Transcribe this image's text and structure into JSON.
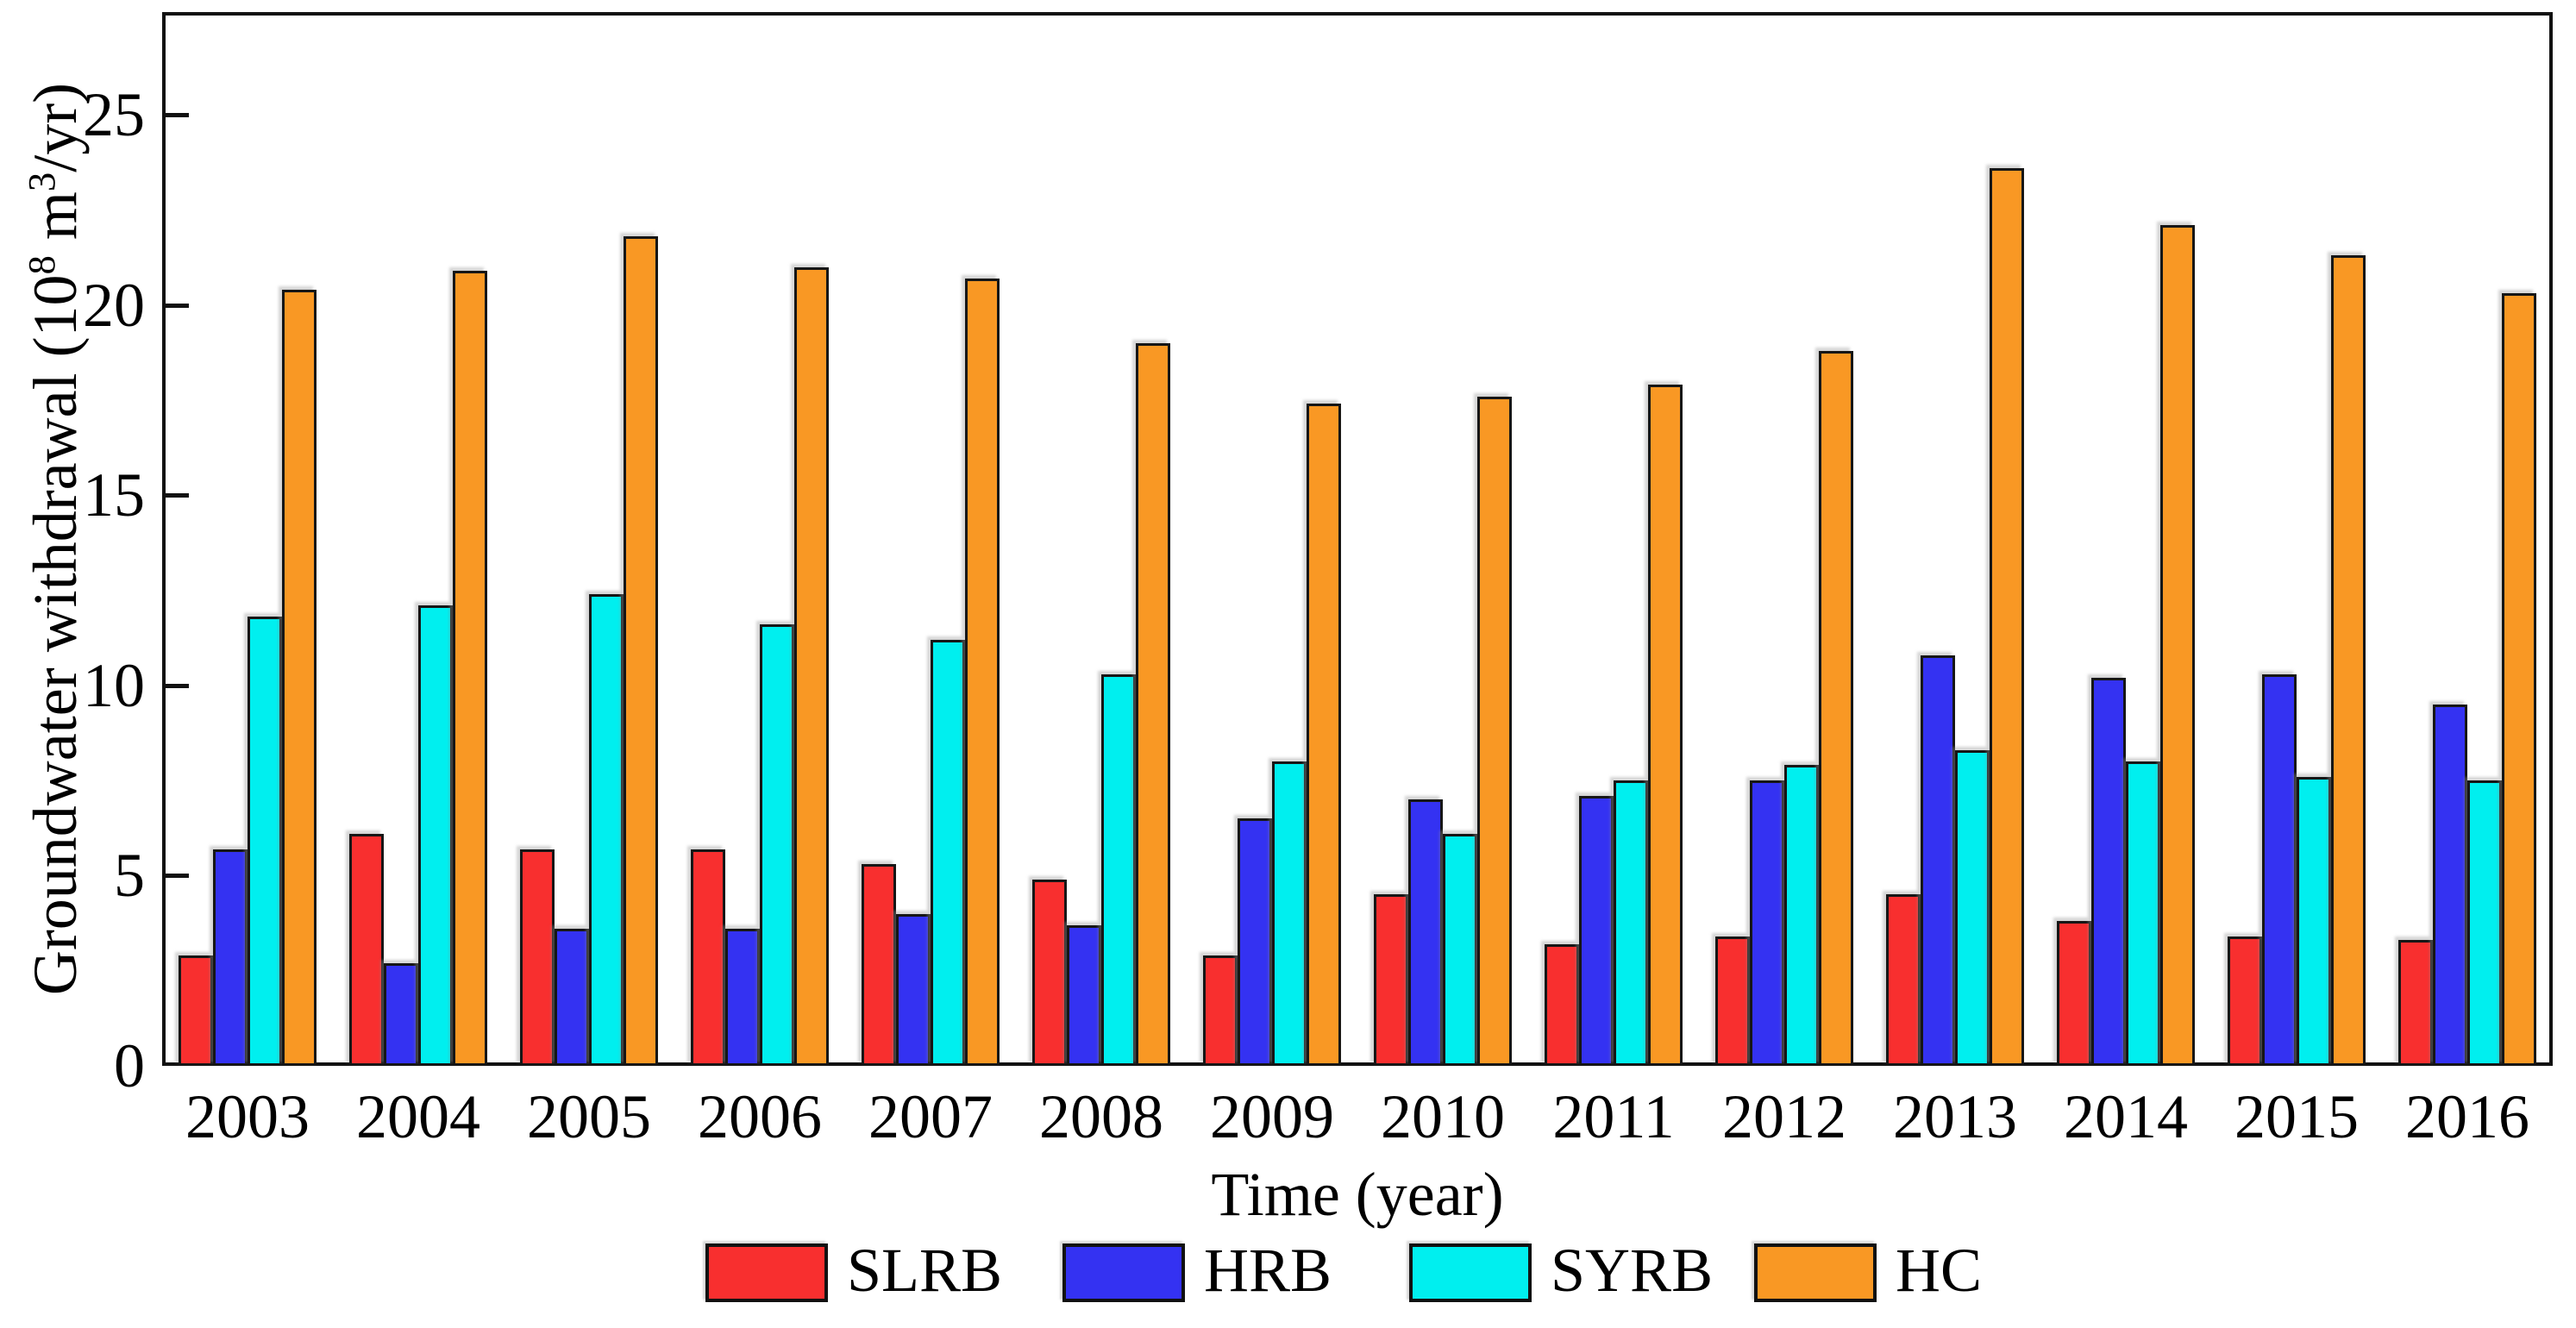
{
  "figure": {
    "background": "#ffffff",
    "frame_color": "#111111"
  },
  "y_axis": {
    "label_prefix": "Groundwater withdrawal (10",
    "label_sup1": "8",
    "label_mid": " m",
    "label_sup2": "3",
    "label_suffix": "/yr)",
    "tick_labels": [
      "0",
      "5",
      "10",
      "15",
      "20",
      "25"
    ]
  },
  "x_axis": {
    "label": "Time (year)"
  },
  "legend": {
    "items": [
      {
        "label": "SLRB",
        "color": "#f82f2f"
      },
      {
        "label": "HRB",
        "color": "#3432f2"
      },
      {
        "label": "SYRB",
        "color": "#00efef"
      },
      {
        "label": "HC",
        "color": "#f99824"
      }
    ]
  },
  "chart_data": {
    "type": "bar",
    "title": "",
    "categories": [
      "2003",
      "2004",
      "2005",
      "2006",
      "2007",
      "2008",
      "2009",
      "2010",
      "2011",
      "2012",
      "2013",
      "2014",
      "2015",
      "2016"
    ],
    "series": [
      {
        "name": "SLRB",
        "color": "#f82f2f",
        "values": [
          2.9,
          6.1,
          5.7,
          5.7,
          5.3,
          4.9,
          2.9,
          4.5,
          3.2,
          3.4,
          4.5,
          3.8,
          3.4,
          3.3
        ]
      },
      {
        "name": "HRB",
        "color": "#3432f2",
        "values": [
          5.7,
          2.7,
          3.6,
          3.6,
          4.0,
          3.7,
          6.5,
          7.0,
          7.1,
          7.5,
          10.8,
          10.2,
          10.3,
          9.5
        ]
      },
      {
        "name": "SYRB",
        "color": "#00efef",
        "values": [
          11.8,
          12.1,
          12.4,
          11.6,
          11.2,
          10.3,
          8.0,
          6.1,
          7.5,
          7.9,
          8.3,
          8.0,
          7.6,
          7.5
        ]
      },
      {
        "name": "HC",
        "color": "#f99824",
        "values": [
          20.4,
          20.9,
          21.8,
          21.0,
          20.7,
          19.0,
          17.4,
          17.6,
          17.9,
          18.8,
          23.6,
          22.1,
          21.3,
          20.3
        ]
      }
    ],
    "xlabel": "Time (year)",
    "ylabel": "Groundwater withdrawal (10^8 m^3/yr)",
    "ylim": [
      0,
      27.7
    ],
    "yticks": [
      0,
      5,
      10,
      15,
      20,
      25
    ],
    "grid": false,
    "legend_position": "bottom"
  }
}
